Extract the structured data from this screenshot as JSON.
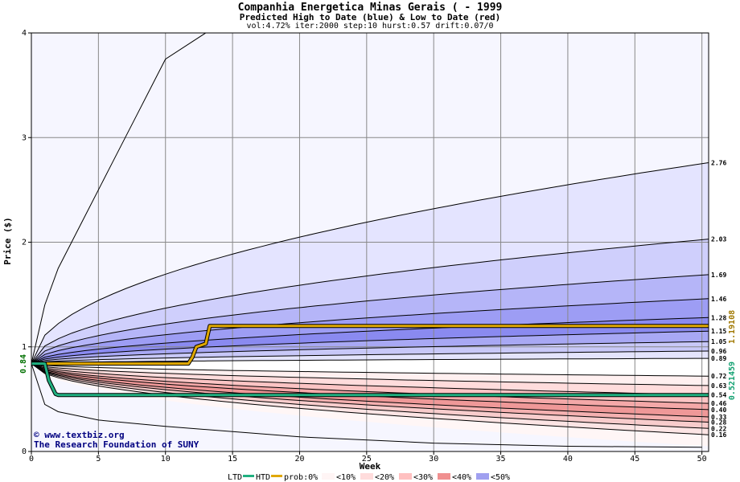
{
  "title": "Companhia Energetica Minas Gerais ( - 1999",
  "subtitle": "Predicted High to Date (blue) &  Low to Date (red)",
  "params": "vol:4.72% iter:2000 step:10 hurst:0.57 drift:0.07/0",
  "credits": {
    "line1": "www.textbiz.org",
    "line2": "The Research Foundation of SUNY"
  },
  "legend": {
    "ltd": "LTD",
    "htd": "HTD",
    "prob": "prob:0%",
    "bins": [
      "<10%",
      "<20%",
      "<30%",
      "<40%",
      "<50%"
    ]
  },
  "colors": {
    "htd": "#e0a800",
    "ltd": "#20b080",
    "start": "#007000"
  },
  "chart_data": {
    "type": "area",
    "xlabel": "Week",
    "ylabel": "Price ($)",
    "xlim": [
      0,
      50.5
    ],
    "ylim": [
      0,
      4
    ],
    "xticks": [
      0,
      5,
      10,
      15,
      20,
      25,
      30,
      35,
      40,
      45,
      50
    ],
    "yticks": [
      0,
      1,
      2,
      3,
      4
    ],
    "start_value": "0.84",
    "upper_quantile_curves": [
      {
        "end": "2.76",
        "prob": "<10%"
      },
      {
        "end": "2.03",
        "prob": "<20%"
      },
      {
        "end": "1.69",
        "prob": "<30%"
      },
      {
        "end": "1.46",
        "prob": "<40%"
      },
      {
        "end": "1.28",
        "prob": "<50%"
      },
      {
        "end": "1.15",
        "prob": "<50%"
      },
      {
        "end": "1.05",
        "prob": "<50%"
      },
      {
        "end": "0.96",
        "prob": "<50%"
      },
      {
        "end": "0.89",
        "prob": "<50%"
      }
    ],
    "lower_quantile_curves": [
      {
        "end": "0.72",
        "prob": "<10%"
      },
      {
        "end": "0.63",
        "prob": "<20%"
      },
      {
        "end": "0.54",
        "prob": "<30%"
      },
      {
        "end": "0.46",
        "prob": "<40%"
      },
      {
        "end": "0.40",
        "prob": "<50%"
      },
      {
        "end": "0.33",
        "prob": "<50%"
      },
      {
        "end": "0.28",
        "prob": "<50%"
      },
      {
        "end": "0.22",
        "prob": "<50%"
      },
      {
        "end": "0.16",
        "prob": "<50%"
      }
    ],
    "outer_curves": [
      {
        "name": "max",
        "points": [
          [
            0,
            0.84
          ],
          [
            1,
            1.4
          ],
          [
            2,
            1.75
          ],
          [
            4,
            2.25
          ],
          [
            6,
            2.75
          ],
          [
            8,
            3.25
          ],
          [
            10,
            3.75
          ],
          [
            13,
            4.0
          ]
        ]
      },
      {
        "name": "min",
        "points": [
          [
            0,
            0.84
          ],
          [
            1,
            0.45
          ],
          [
            2,
            0.38
          ],
          [
            5,
            0.3
          ],
          [
            10,
            0.24
          ],
          [
            20,
            0.14
          ],
          [
            30,
            0.08
          ],
          [
            40,
            0.05
          ],
          [
            50,
            0.04
          ]
        ]
      }
    ],
    "series": [
      {
        "name": "HTD",
        "final_label": "1.19108",
        "points": [
          [
            0,
            0.84
          ],
          [
            2,
            0.84
          ],
          [
            5,
            0.84
          ],
          [
            11.7,
            0.84
          ],
          [
            12,
            0.9
          ],
          [
            12.3,
            1.0
          ],
          [
            13,
            1.03
          ],
          [
            13.3,
            1.2
          ],
          [
            14,
            1.2
          ],
          [
            20,
            1.2
          ],
          [
            30,
            1.2
          ],
          [
            40,
            1.2
          ],
          [
            50.5,
            1.2
          ]
        ]
      },
      {
        "name": "LTD",
        "final_label": "0.521459",
        "points": [
          [
            0,
            0.84
          ],
          [
            1,
            0.84
          ],
          [
            1.3,
            0.68
          ],
          [
            1.8,
            0.55
          ],
          [
            2,
            0.54
          ],
          [
            10,
            0.54
          ],
          [
            20,
            0.54
          ],
          [
            30,
            0.54
          ],
          [
            40,
            0.54
          ],
          [
            50.5,
            0.54
          ]
        ]
      }
    ]
  }
}
